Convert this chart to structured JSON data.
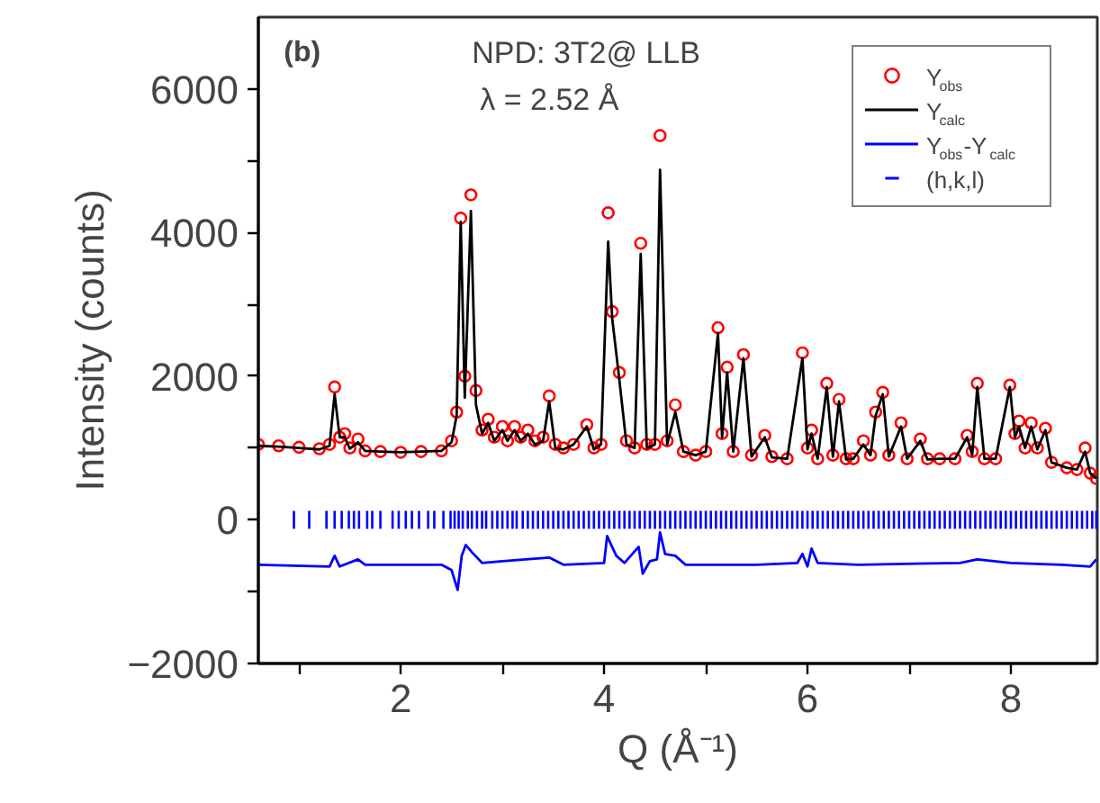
{
  "chart_data": {
    "type": "line",
    "xlabel": "Q (Å⁻¹)",
    "ylabel": "Intensity (counts)",
    "annotations": [
      "(b)",
      "NPD:  3T2@ LLB",
      "λ = 2.52 Å"
    ],
    "xlim": [
      0.6,
      8.85
    ],
    "ylim": [
      -2000,
      7000
    ],
    "xticks": [
      {
        "value": 1,
        "label": null
      },
      2,
      {
        "value": 3,
        "label": null
      },
      4,
      {
        "value": 5,
        "label": null
      },
      6,
      {
        "value": 7,
        "label": null
      },
      8
    ],
    "yticks": [
      -2000,
      {
        "value": -1000,
        "label": null
      },
      0,
      {
        "value": 1000,
        "label": null
      },
      2000,
      {
        "value": 3000,
        "label": null
      },
      4000,
      {
        "value": 5000,
        "label": null
      },
      6000
    ],
    "grid": false,
    "legend": "top right",
    "x": [
      0.6,
      0.8,
      1.0,
      1.2,
      1.3,
      1.35,
      1.4,
      1.45,
      1.5,
      1.58,
      1.65,
      1.8,
      2.0,
      2.2,
      2.4,
      2.5,
      2.55,
      2.59,
      2.63,
      2.69,
      2.74,
      2.8,
      2.86,
      2.92,
      3.0,
      3.05,
      3.12,
      3.18,
      3.25,
      3.32,
      3.4,
      3.46,
      3.52,
      3.6,
      3.7,
      3.83,
      3.9,
      3.97,
      4.04,
      4.08,
      4.15,
      4.22,
      4.3,
      4.36,
      4.42,
      4.5,
      4.55,
      4.62,
      4.7,
      4.78,
      4.9,
      5.0,
      5.12,
      5.16,
      5.21,
      5.27,
      5.37,
      5.45,
      5.58,
      5.65,
      5.8,
      5.95,
      6.0,
      6.04,
      6.1,
      6.19,
      6.25,
      6.31,
      6.38,
      6.45,
      6.55,
      6.62,
      6.67,
      6.74,
      6.8,
      6.92,
      6.98,
      7.11,
      7.18,
      7.3,
      7.45,
      7.57,
      7.62,
      7.67,
      7.74,
      7.85,
      7.99,
      8.04,
      8.08,
      8.14,
      8.2,
      8.26,
      8.34,
      8.4,
      8.55,
      8.65,
      8.73,
      8.78,
      8.84
    ],
    "series": [
      {
        "name": "Y$_{obs}$",
        "type": "scatter",
        "marker": "circle",
        "color": "#ff0000",
        "values": [
          1050,
          1030,
          1010,
          990,
          1050,
          1850,
          1150,
          1200,
          1000,
          1125,
          960,
          950,
          940,
          950,
          960,
          1100,
          1500,
          4200,
          2000,
          4525,
          1800,
          1250,
          1400,
          1150,
          1300,
          1100,
          1300,
          1150,
          1250,
          1100,
          1150,
          1725,
          1050,
          1000,
          1050,
          1325,
          1000,
          1050,
          4275,
          2900,
          2050,
          1100,
          1000,
          3850,
          1050,
          1050,
          5350,
          1100,
          1600,
          950,
          900,
          950,
          2675,
          1200,
          2125,
          950,
          2300,
          900,
          1175,
          880,
          850,
          2325,
          1000,
          1250,
          850,
          1900,
          900,
          1675,
          850,
          850,
          1100,
          900,
          1500,
          1775,
          900,
          1350,
          850,
          1125,
          850,
          850,
          850,
          1175,
          950,
          1900,
          850,
          850,
          1875,
          1200,
          1375,
          1000,
          1350,
          1000,
          1275,
          800,
          725,
          700,
          1000,
          650,
          575
        ]
      },
      {
        "name": "Y$_{calc}$",
        "color": "#000000",
        "values": [
          1030,
          1020,
          1000,
          980,
          1030,
          1750,
          1150,
          1150,
          990,
          1080,
          960,
          950,
          940,
          950,
          960,
          1080,
          1450,
          4150,
          1700,
          4300,
          1600,
          1200,
          1350,
          1100,
          1250,
          1100,
          1250,
          1100,
          1200,
          1050,
          1100,
          1650,
          1000,
          980,
          1050,
          1300,
          980,
          1050,
          3875,
          2800,
          1950,
          1050,
          1000,
          3700,
          1000,
          1050,
          4875,
          1050,
          1500,
          950,
          900,
          950,
          2600,
          1150,
          2050,
          950,
          2250,
          880,
          1150,
          870,
          850,
          2250,
          980,
          1200,
          850,
          1850,
          880,
          1650,
          840,
          850,
          1050,
          900,
          1450,
          1750,
          880,
          1300,
          850,
          1100,
          840,
          850,
          850,
          1150,
          900,
          1850,
          850,
          850,
          1850,
          1150,
          1300,
          1000,
          1300,
          980,
          1250,
          800,
          725,
          700,
          950,
          650,
          575
        ]
      },
      {
        "name": "Y$_{obs}$-Y$_{calc}$",
        "color": "#0000ff",
        "x": [
          0.6,
          1.3,
          1.35,
          1.4,
          1.58,
          1.65,
          2.4,
          2.5,
          2.56,
          2.6,
          2.64,
          2.7,
          2.8,
          3.0,
          3.46,
          3.6,
          4.0,
          4.03,
          4.07,
          4.12,
          4.2,
          4.34,
          4.38,
          4.45,
          4.52,
          4.55,
          4.6,
          4.7,
          4.8,
          5.5,
          5.9,
          5.95,
          6.0,
          6.04,
          6.1,
          6.5,
          7.5,
          7.67,
          8.0,
          8.5,
          8.78,
          8.84
        ],
        "values": [
          -625,
          -650,
          -500,
          -650,
          -550,
          -625,
          -625,
          -700,
          -975,
          -500,
          -350,
          -450,
          -600,
          -575,
          -525,
          -625,
          -600,
          -225,
          -350,
          -500,
          -600,
          -375,
          -750,
          -575,
          -550,
          -175,
          -475,
          -500,
          -625,
          -625,
          -600,
          -475,
          -650,
          -400,
          -600,
          -625,
          -600,
          -550,
          -600,
          -625,
          -650,
          -550
        ]
      },
      {
        "name": "(h,k,l)",
        "type": "bar",
        "color": "#0000ff",
        "base": [
          -125,
          -125,
          -125,
          -125,
          -125,
          -125,
          -125,
          -125,
          -125,
          -125,
          -125,
          -125,
          -125,
          -125,
          -125,
          -125,
          -125,
          -125,
          -125,
          -125,
          -125,
          -125,
          -125,
          -125,
          -125,
          -125,
          -125,
          -125,
          -125,
          -125,
          -125,
          -125,
          -125,
          -125,
          -125,
          -125,
          -125,
          -125,
          -125,
          -125,
          -125,
          -125,
          -125,
          -125,
          -125,
          -125,
          -125,
          -125,
          -125,
          -125,
          -125,
          -125,
          -125,
          -125,
          -125,
          -125,
          -125,
          -125,
          -125,
          -125,
          -125,
          -125,
          -125,
          -125,
          -125,
          -125,
          -125,
          -125,
          -125,
          -125,
          -125,
          -125,
          -125,
          -125,
          -125,
          -125,
          -125,
          -125,
          -125,
          -125,
          -125,
          -125,
          -125,
          -125,
          -125,
          -125,
          -125,
          -125,
          -125,
          -125,
          -125,
          -125,
          -125,
          -125,
          -125,
          -125,
          -125,
          -125,
          -125,
          -125,
          -125,
          -125,
          -125,
          -125,
          -125,
          -125,
          -125,
          -125,
          -125,
          -125,
          -125,
          -125,
          -125,
          -125,
          -125,
          -125,
          -125,
          -125,
          -125,
          -125,
          -125,
          -125,
          -125,
          -125,
          -125,
          -125,
          -125,
          -125,
          -125,
          -125,
          -125,
          -125,
          -125,
          -125,
          -125,
          -125,
          -125,
          -125,
          -125,
          -125,
          -125,
          -125,
          -125,
          -125,
          -125,
          -125,
          -125,
          -125
        ],
        "x": [
          0.95,
          1.1,
          1.27,
          1.35,
          1.42,
          1.49,
          1.54,
          1.59,
          1.67,
          1.72,
          1.8,
          1.92,
          1.98,
          2.05,
          2.11,
          2.18,
          2.27,
          2.33,
          2.42,
          2.49,
          2.53,
          2.57,
          2.61,
          2.66,
          2.7,
          2.75,
          2.8,
          2.84,
          2.9,
          2.95,
          3.0,
          3.05,
          3.1,
          3.14,
          3.2,
          3.25,
          3.3,
          3.35,
          3.4,
          3.45,
          3.5,
          3.55,
          3.6,
          3.65,
          3.7,
          3.75,
          3.8,
          3.85,
          3.9,
          3.95,
          4.0,
          4.05,
          4.1,
          4.15,
          4.2,
          4.25,
          4.3,
          4.35,
          4.4,
          4.45,
          4.5,
          4.55,
          4.6,
          4.65,
          4.7,
          4.75,
          4.8,
          4.85,
          4.9,
          4.95,
          5.0,
          5.05,
          5.1,
          5.15,
          5.2,
          5.25,
          5.3,
          5.35,
          5.4,
          5.45,
          5.5,
          5.55,
          5.6,
          5.65,
          5.7,
          5.75,
          5.8,
          5.85,
          5.9,
          5.95,
          6.0,
          6.05,
          6.1,
          6.15,
          6.2,
          6.25,
          6.3,
          6.35,
          6.4,
          6.45,
          6.5,
          6.55,
          6.6,
          6.65,
          6.7,
          6.75,
          6.8,
          6.85,
          6.9,
          6.95,
          7.0,
          7.05,
          7.1,
          7.15,
          7.2,
          7.25,
          7.3,
          7.35,
          7.4,
          7.45,
          7.5,
          7.55,
          7.6,
          7.65,
          7.7,
          7.75,
          7.8,
          7.85,
          7.9,
          7.95,
          8.0,
          8.05,
          8.1,
          8.15,
          8.2,
          8.25,
          8.3,
          8.35,
          8.4,
          8.45,
          8.5,
          8.55,
          8.6,
          8.65,
          8.7,
          8.75,
          8.8,
          8.84
        ],
        "values": [
          250,
          250,
          250,
          250,
          250,
          250,
          250,
          250,
          250,
          250,
          250,
          250,
          250,
          250,
          250,
          250,
          250,
          250,
          250,
          250,
          250,
          250,
          250,
          250,
          250,
          250,
          250,
          250,
          250,
          250,
          250,
          250,
          250,
          250,
          250,
          250,
          250,
          250,
          250,
          250,
          250,
          250,
          250,
          250,
          250,
          250,
          250,
          250,
          250,
          250,
          250,
          250,
          250,
          250,
          250,
          250,
          250,
          250,
          250,
          250,
          250,
          250,
          250,
          250,
          250,
          250,
          250,
          250,
          250,
          250,
          250,
          250,
          250,
          250,
          250,
          250,
          250,
          250,
          250,
          250,
          250,
          250,
          250,
          250,
          250,
          250,
          250,
          250,
          250,
          250,
          250,
          250,
          250,
          250,
          250,
          250,
          250,
          250,
          250,
          250,
          250,
          250,
          250,
          250,
          250,
          250,
          250,
          250,
          250,
          250,
          250,
          250,
          250,
          250,
          250,
          250,
          250,
          250,
          250,
          250,
          250,
          250,
          250,
          250,
          250,
          250,
          250,
          250,
          250,
          250,
          250,
          250,
          250,
          250,
          250,
          250,
          250,
          250,
          250,
          250,
          250,
          250,
          250,
          250,
          250,
          250,
          250,
          250
        ]
      }
    ]
  }
}
